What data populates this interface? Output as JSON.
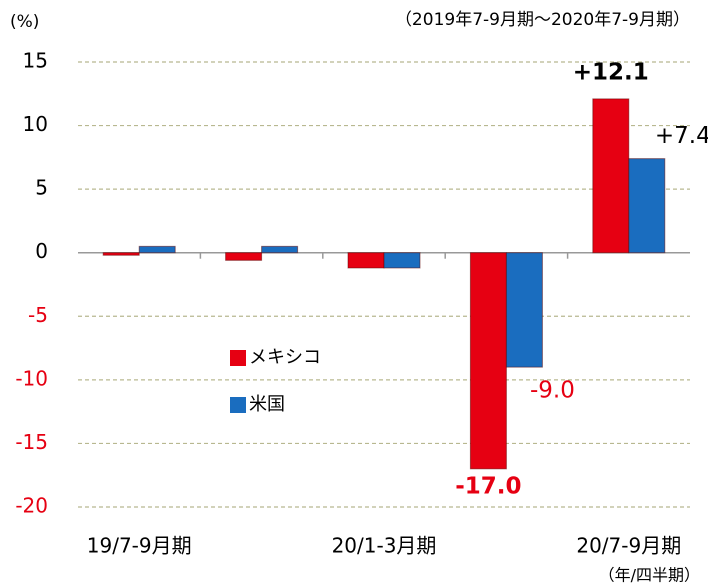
{
  "chart_data": {
    "type": "bar",
    "subtitle": "（2019年7-9月期～2020年7-9月期）",
    "y_label": "(%)",
    "x_label": "（年/四半期）",
    "categories": [
      "19/7-9月期",
      null,
      "20/1-3月期",
      null,
      "20/7-9月期"
    ],
    "series": [
      {
        "name": "メキシコ",
        "color": "#e60012",
        "values": [
          -0.2,
          -0.6,
          -1.2,
          -17.0,
          12.1
        ],
        "value_labels": [
          null,
          null,
          null,
          "-17.0",
          "+12.1"
        ]
      },
      {
        "name": "米国",
        "color": "#1a6dbf",
        "values": [
          0.5,
          0.5,
          -1.2,
          -9.0,
          7.4
        ],
        "value_labels": [
          null,
          null,
          null,
          "-9.0",
          "+7.4"
        ]
      }
    ],
    "ylim": [
      -20,
      15
    ],
    "yticks": [
      15,
      10,
      5,
      0,
      -5,
      -10,
      -15,
      -20
    ],
    "grid": true
  }
}
